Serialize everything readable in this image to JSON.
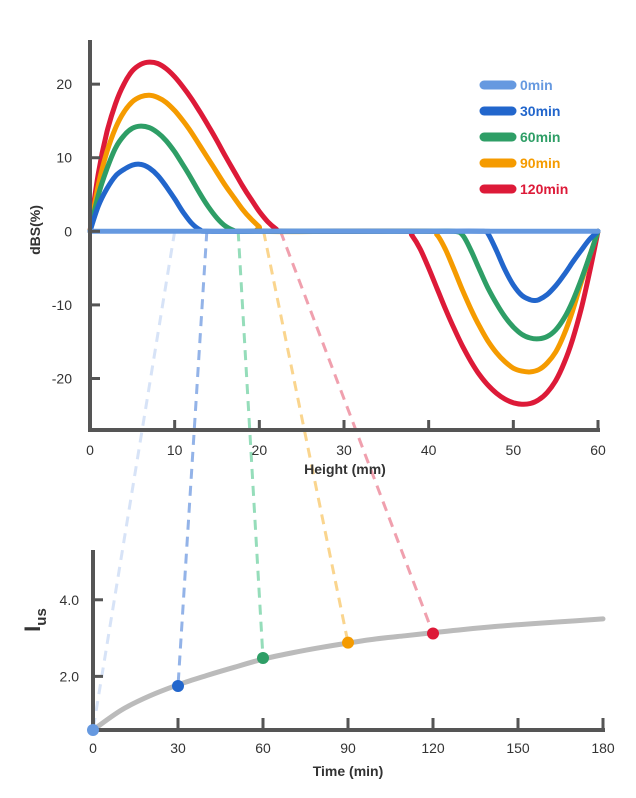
{
  "chart_data": [
    {
      "type": "line",
      "title": "",
      "xlabel": "Height (mm)",
      "ylabel": "dBS(%)",
      "xlim": [
        0,
        60
      ],
      "ylim": [
        -27,
        26
      ],
      "xticks": [
        0,
        10,
        20,
        30,
        40,
        50,
        60
      ],
      "yticks": [
        20,
        10,
        0,
        -10,
        -20
      ],
      "grid": false,
      "legend_position": "top-right",
      "series": [
        {
          "name": "0min",
          "color": "#6699E0",
          "x": [
            0,
            60
          ],
          "y": [
            0,
            0
          ]
        },
        {
          "name": "30min",
          "color": "#2266CC",
          "x": [
            0,
            1,
            2,
            3,
            4,
            5,
            6,
            7,
            8,
            9,
            10,
            11,
            12,
            13,
            13.8,
            20,
            30,
            40,
            46.5,
            47,
            48,
            49,
            50,
            51,
            52,
            52.5,
            53,
            54,
            55,
            56,
            57,
            58,
            59,
            60
          ],
          "y": [
            0,
            3.5,
            5.8,
            7.5,
            8.4,
            9.0,
            9.1,
            8.6,
            7.6,
            6.1,
            4.4,
            2.6,
            1.1,
            0.2,
            0,
            0,
            0,
            0,
            0,
            -0.3,
            -2.6,
            -5.2,
            -7.3,
            -8.7,
            -9.3,
            -9.4,
            -9.3,
            -8.6,
            -7.4,
            -5.9,
            -4.2,
            -2.6,
            -1.1,
            0
          ]
        },
        {
          "name": "60min",
          "color": "#2E9E66",
          "x": [
            0,
            1,
            2,
            3,
            4,
            5,
            6,
            7,
            8,
            9,
            10,
            11,
            12,
            13,
            14,
            15,
            16,
            17,
            17.5,
            20,
            30,
            40,
            43,
            44,
            45,
            46,
            47,
            48,
            49,
            50,
            51,
            52,
            53,
            54,
            55,
            56,
            57,
            58,
            59,
            60
          ],
          "y": [
            0,
            5.0,
            8.5,
            11.3,
            13.0,
            14.0,
            14.3,
            14.1,
            13.4,
            12.3,
            10.8,
            9.0,
            7.1,
            5.1,
            3.3,
            1.8,
            0.7,
            0.1,
            0,
            0,
            0,
            0,
            0,
            -0.5,
            -2.6,
            -5.2,
            -7.7,
            -9.8,
            -11.6,
            -13.0,
            -14.0,
            -14.5,
            -14.6,
            -14.3,
            -13.4,
            -11.8,
            -9.5,
            -6.6,
            -3.4,
            0
          ]
        },
        {
          "name": "90min",
          "color": "#F59B00",
          "x": [
            0,
            1,
            2,
            3,
            4,
            5,
            6,
            7,
            8,
            9,
            10,
            11,
            12,
            13,
            14,
            15,
            16,
            17,
            18,
            19,
            20,
            20.5,
            30,
            40,
            41,
            42,
            43,
            44,
            45,
            46,
            47,
            48,
            49,
            50,
            51,
            52,
            53,
            54,
            55,
            56,
            57,
            58,
            59,
            60
          ],
          "y": [
            0,
            6.4,
            10.8,
            14.0,
            16.2,
            17.6,
            18.3,
            18.5,
            18.2,
            17.5,
            16.4,
            15.0,
            13.4,
            11.6,
            9.8,
            8.0,
            6.2,
            4.6,
            3.0,
            1.7,
            0.6,
            0,
            0,
            0,
            -0.5,
            -2.5,
            -5.2,
            -8.0,
            -10.6,
            -12.9,
            -14.9,
            -16.5,
            -17.7,
            -18.6,
            -19.0,
            -19.1,
            -18.8,
            -17.9,
            -16.4,
            -14.0,
            -10.8,
            -7.0,
            -3.4,
            0
          ]
        },
        {
          "name": "120min",
          "color": "#DD1A38",
          "x": [
            0,
            1,
            2,
            3,
            4,
            5,
            6,
            7,
            8,
            9,
            10,
            11,
            12,
            13,
            14,
            15,
            16,
            17,
            18,
            19,
            20,
            21,
            22,
            22.5,
            30,
            37.5,
            38,
            39,
            40,
            41,
            42,
            43,
            44,
            45,
            46,
            47,
            48,
            49,
            50,
            51,
            52,
            53,
            54,
            55,
            56,
            57,
            58,
            59,
            60
          ],
          "y": [
            0,
            8.0,
            13.5,
            17.3,
            20.0,
            21.8,
            22.7,
            23.0,
            22.8,
            22.1,
            21.0,
            19.6,
            18.0,
            16.2,
            14.3,
            12.3,
            10.2,
            8.2,
            6.2,
            4.4,
            2.7,
            1.3,
            0.3,
            0,
            0,
            0,
            -0.5,
            -2.4,
            -5.0,
            -7.8,
            -10.6,
            -13.2,
            -15.6,
            -17.7,
            -19.5,
            -20.9,
            -22.0,
            -22.8,
            -23.3,
            -23.5,
            -23.4,
            -22.9,
            -21.9,
            -20.3,
            -17.9,
            -14.7,
            -10.6,
            -5.6,
            0
          ]
        }
      ]
    },
    {
      "type": "scatter",
      "title": "",
      "xlabel": "Time (min)",
      "ylabel": "Ius",
      "ylabel_main": "I",
      "ylabel_sub": "us",
      "xlim": [
        0,
        180
      ],
      "ylim": [
        0.6,
        5.3
      ],
      "xticks": [
        0,
        30,
        60,
        90,
        120,
        150,
        180
      ],
      "yticks": [
        2.0,
        4.0
      ],
      "ytick_labels": [
        "2.0",
        "4.0"
      ],
      "grid": false,
      "fit_curve": {
        "color": "#BBBBBB",
        "x": [
          0,
          10,
          20,
          30,
          40,
          50,
          60,
          70,
          80,
          90,
          100,
          110,
          120,
          130,
          140,
          150,
          160,
          170,
          180
        ],
        "y": [
          0.6,
          1.12,
          1.49,
          1.78,
          2.02,
          2.24,
          2.45,
          2.61,
          2.75,
          2.87,
          2.98,
          3.06,
          3.14,
          3.22,
          3.29,
          3.35,
          3.4,
          3.45,
          3.5
        ]
      },
      "points": [
        {
          "label": "0min",
          "x": 0,
          "y": 0.6,
          "color": "#6699E0"
        },
        {
          "label": "30min",
          "x": 30,
          "y": 1.75,
          "color": "#2266CC"
        },
        {
          "label": "60min",
          "x": 60,
          "y": 2.48,
          "color": "#2E9E66"
        },
        {
          "label": "90min",
          "x": 90,
          "y": 2.88,
          "color": "#F59B00"
        },
        {
          "label": "120min",
          "x": 120,
          "y": 3.12,
          "color": "#DD1A38"
        }
      ]
    }
  ],
  "connectors": [
    {
      "from_height_mm": 10,
      "color": "#D7E3F7"
    },
    {
      "from_height_mm": 13.8,
      "color": "#93B3E8"
    },
    {
      "from_height_mm": 17.5,
      "color": "#95DDBA"
    },
    {
      "from_height_mm": 20.5,
      "color": "#FAD58E"
    },
    {
      "from_height_mm": 22.5,
      "color": "#F0A0AE"
    }
  ]
}
